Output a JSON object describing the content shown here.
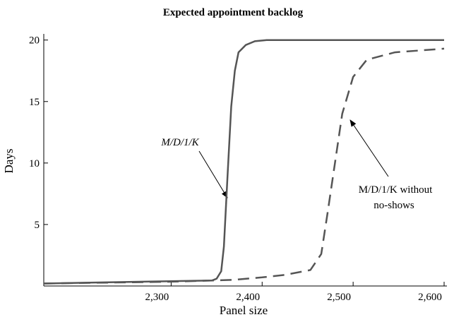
{
  "chart_data": {
    "type": "line",
    "title": "Expected appointment backlog",
    "xlabel": "Panel size",
    "ylabel": "Days",
    "xlim": [
      2160,
      2600
    ],
    "ylim": [
      0,
      20.5
    ],
    "xticks": [
      {
        "value": 2300,
        "label": "2,300"
      },
      {
        "value": 2400,
        "label": "2,400"
      },
      {
        "value": 2500,
        "label": "2,500"
      },
      {
        "value": 2600,
        "label": "2,600"
      }
    ],
    "yticks": [
      5,
      10,
      15,
      20
    ],
    "series": [
      {
        "name": "M/D/1/K",
        "color": "#555555",
        "dash": false,
        "x": [
          2160,
          2270,
          2345,
          2350,
          2355,
          2358,
          2362,
          2366,
          2370,
          2374,
          2382,
          2392,
          2405,
          2600
        ],
        "values": [
          0.2,
          0.35,
          0.45,
          0.6,
          1.2,
          3.2,
          9,
          14.6,
          17.5,
          19,
          19.6,
          19.9,
          20,
          20
        ]
      },
      {
        "name": "M/D/1/K without no-shows",
        "color": "#555555",
        "dash": true,
        "x": [
          2160,
          2300,
          2368,
          2400,
          2425,
          2453,
          2465,
          2472,
          2480,
          2488,
          2500,
          2515,
          2546,
          2600
        ],
        "values": [
          0.2,
          0.35,
          0.5,
          0.7,
          0.9,
          1.3,
          2.6,
          6,
          10,
          14,
          17,
          18.4,
          19,
          19.3
        ]
      }
    ],
    "annotations": [
      "M/D/1/K",
      "M/D/1/K without",
      "no-shows"
    ]
  }
}
